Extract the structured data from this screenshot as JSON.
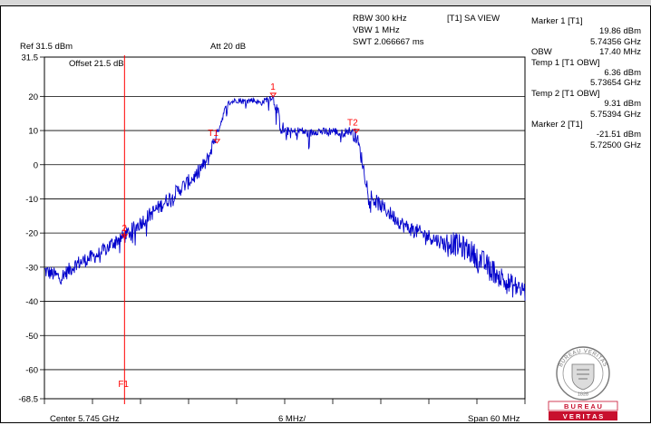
{
  "header": {
    "ref_level": "Ref 31.5 dBm",
    "attenuation": "Att  20 dB",
    "offset": "Offset 21.5 dB",
    "rbw": "RBW 300 kHz",
    "vbw": "VBW 1 MHz",
    "swt": "SWT 2.066667 ms",
    "trace_mode": "[T1] SA VIEW"
  },
  "footer": {
    "center": "Center 5.745 GHz",
    "div": "6 MHz/",
    "span": "Span 60 MHz"
  },
  "markers_panel": {
    "marker1_title": "Marker 1 [T1]",
    "marker1_level": "19.86 dBm",
    "marker1_freq": "5.74356 GHz",
    "obw_label": "OBW",
    "obw_value": "17.40 MHz",
    "temp1_title": "Temp 1 [T1 OBW]",
    "temp1_level": "6.36 dBm",
    "temp1_freq": "5.73654 GHz",
    "temp2_title": "Temp 2 [T1 OBW]",
    "temp2_level": "9.31 dBm",
    "temp2_freq": "5.75394 GHz",
    "marker2_title": "Marker 2 [T1]",
    "marker2_level": "-21.51 dBm",
    "marker2_freq": "5.72500 GHz"
  },
  "logo": {
    "top_text": "BUREAU VERITAS",
    "year": "1828",
    "banner_line1": "B U R E A U",
    "banner_line2": "V E R I T A S"
  },
  "colors": {
    "trace": "#0000cc",
    "marker": "#ff0000",
    "grid": "#000000",
    "logo_red": "#c8102e"
  },
  "chart_data": {
    "type": "line",
    "title": "",
    "xlabel": "",
    "ylabel": "",
    "unit_y": "dBm",
    "x_unit": "MHz",
    "xlim": [
      5715,
      5775
    ],
    "ylim": [
      -68.5,
      31.5
    ],
    "yticks": [
      31.5,
      20,
      10,
      0,
      -10,
      -20,
      -30,
      -40,
      -50,
      -60,
      -68.5
    ],
    "grid": true,
    "series": [
      {
        "x": [
          5715,
          5716,
          5717,
          5718,
          5719,
          5720,
          5721,
          5722,
          5723,
          5724,
          5725,
          5726,
          5727,
          5728,
          5729,
          5730,
          5731,
          5732,
          5733,
          5734,
          5734.5,
          5735,
          5735.5,
          5736,
          5736.5,
          5737,
          5737.5,
          5738,
          5739,
          5740,
          5741,
          5742,
          5743,
          5743.5,
          5744,
          5744.5,
          5745,
          5746,
          5747,
          5748,
          5749,
          5750,
          5751,
          5752,
          5753,
          5753.5,
          5754,
          5754.5,
          5755,
          5755.5,
          5756,
          5757,
          5758,
          5759,
          5760,
          5761,
          5762,
          5763,
          5764,
          5765,
          5766,
          5767,
          5768,
          5769,
          5770,
          5771,
          5772,
          5773,
          5774,
          5775
        ],
        "y": [
          -31,
          -32,
          -33,
          -31,
          -29,
          -28,
          -27,
          -26,
          -24,
          -22,
          -21,
          -19,
          -17,
          -15,
          -13,
          -11,
          -9,
          -7,
          -5,
          -3,
          -1,
          0,
          2,
          6,
          9,
          12,
          16,
          18,
          19,
          18.5,
          19,
          18,
          19.5,
          19.86,
          17,
          11,
          10,
          9.5,
          10,
          9,
          10,
          9.5,
          10,
          9,
          10,
          9.31,
          8,
          3,
          -3,
          -8,
          -10,
          -12,
          -14,
          -16,
          -18,
          -19,
          -20,
          -21,
          -22,
          -23,
          -23,
          -24,
          -25,
          -27,
          -29,
          -31,
          -33,
          -35,
          -36,
          -37
        ]
      }
    ],
    "markers": [
      {
        "label": "1",
        "x": 5743.56,
        "y": 19.86
      },
      {
        "label": "T1",
        "x": 5736.54,
        "y": 6.36
      },
      {
        "label": "T2",
        "x": 5753.94,
        "y": 9.31
      },
      {
        "label": "2",
        "x": 5725.0,
        "y": -21.51
      }
    ],
    "vertical_line": {
      "label": "F1",
      "x": 5725.0
    }
  }
}
